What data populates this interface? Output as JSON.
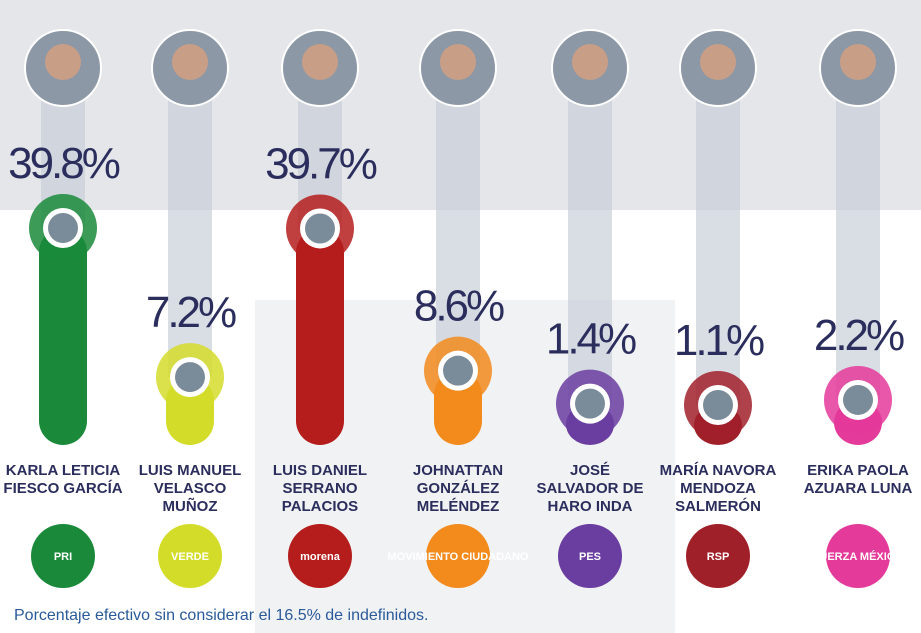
{
  "chart_data": {
    "type": "bar",
    "categories": [
      "KARLA LETICIA\nFIESCO GARCÍA",
      "LUIS MANUEL\nVELASCO\nMUÑOZ",
      "LUIS DANIEL\nSERRANO\nPALACIOS",
      "JOHNATTAN\nGONZÁLEZ\nMELÉNDEZ",
      "JOSÉ\nSALVADOR DE\nHARO INDA",
      "MARÍA NAVORA\nMENDOZA\nSALMERÓN",
      "ERIKA PAOLA\nAZUARA LUNA"
    ],
    "values": [
      39.8,
      7.2,
      39.7,
      8.6,
      1.4,
      1.1,
      2.2
    ],
    "value_labels": [
      "39.8%",
      "7.2%",
      "39.7%",
      "8.6%",
      "1.4%",
      "1.1%",
      "2.2%"
    ],
    "colors": [
      "#1a8a3a",
      "#d4dc2a",
      "#b51d1d",
      "#f28a1c",
      "#6a3da0",
      "#a0202a",
      "#e43a9a"
    ],
    "parties": [
      "PRI",
      "VERDE",
      "morena",
      "MOVIMIENTO CIUDADANO",
      "PES",
      "RSP",
      "FUERZA MÉXICO"
    ],
    "note": "Porcentaje efectivo sin considerar el 16.5% de indefinidos."
  }
}
